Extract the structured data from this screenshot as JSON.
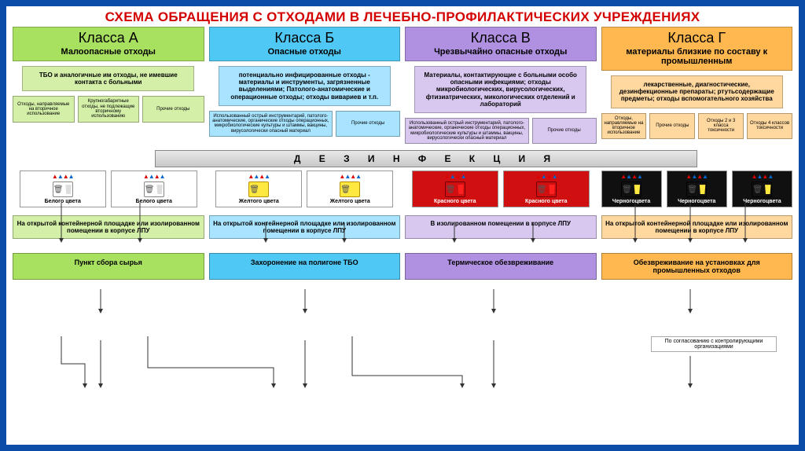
{
  "title": "СХЕМА ОБРАЩЕНИЯ С ОТХОДАМИ В ЛЕЧЕБНО-ПРОФИЛАКТИЧЕСКИХ УЧРЕЖДЕНИЯХ",
  "frame_border_color": "#0a4da8",
  "title_color": "#d40000",
  "disinfection_label": "Д Е З И Н Ф Е К Ц И Я",
  "classes": [
    {
      "id": "A",
      "name": "Класса А",
      "subtitle": "Малоопасные отходы",
      "colors": {
        "light": "#d4f0a8",
        "mid": "#a8e060",
        "dark": "#7fc030"
      },
      "desc": "ТБО и аналогичные им отходы, не имевшие контакта с больными",
      "subboxes": [
        "Отходы, направляемые на вторичное использование",
        "Крупногабаритные отходы, не подлежащие вторичному использованию",
        "Прочие отходы"
      ],
      "bins": [
        {
          "label": "Белого цвета",
          "bag_bg": "#ffffff",
          "bag_border": "#888",
          "bucket": "#dddddd"
        },
        {
          "label": "Белого цвета",
          "bag_bg": "#ffffff",
          "bag_border": "#888",
          "bucket": "#dddddd"
        }
      ],
      "container": "На открытой контейнерной площадке или изолированном помещении в корпусе ЛПУ",
      "final": "Пункт сбора сырья"
    },
    {
      "id": "B",
      "name": "Класса Б",
      "subtitle": "Опасные отходы",
      "colors": {
        "light": "#a8e4ff",
        "mid": "#4fc8f5",
        "dark": "#1a9bd6"
      },
      "desc": "потенциально инфицированные отходы - материалы и инструменты, загрязненные выделениями; Патолого-анатомические и операционные отходы; отходы вивариев и т.п.",
      "subboxes": [
        "Использованный острый инструментарий, патолого-анатомические, органические отходы операционных, микробиологические культуры и штаммы, вакцины, вирусологически опасный материал",
        "Прочие отходы"
      ],
      "bins": [
        {
          "label": "Желтого цвета",
          "bag_bg": "#ffe840",
          "bag_border": "#b89000",
          "bucket": "#ffe840"
        },
        {
          "label": "Желтого цвета",
          "bag_bg": "#ffe840",
          "bag_border": "#b89000",
          "bucket": "#ffe840"
        }
      ],
      "container": "На открытой контейнерной площадке или изолированном помещении в корпусе ЛПУ",
      "final": "Захоронение на полигоне ТБО"
    },
    {
      "id": "V",
      "name": "Класса В",
      "subtitle": "Чрезвычайно опасные отходы",
      "colors": {
        "light": "#d8c8f0",
        "mid": "#b090e0",
        "dark": "#8058c0"
      },
      "desc": "Материалы, контактирующие с больными особо опасными инфекциями; отходы микробиологических, вирусологических, фтизиатрических, микологических отделений и лабораторий",
      "subboxes": [
        "Использованный острый инструментарий, патолого-анатомические, органические отходы операционных, микробиологические культуры и штаммы, вакцины, вирусологически опасный материал",
        "Прочие отходы"
      ],
      "bins": [
        {
          "label": "Красного цвета",
          "bag_bg": "#d01010",
          "bag_border": "#700000",
          "bucket": "#ff2020",
          "label_color": "#ffffff"
        },
        {
          "label": "Красного цвета",
          "bag_bg": "#d01010",
          "bag_border": "#700000",
          "bucket": "#ff2020",
          "label_color": "#ffffff"
        }
      ],
      "container": "В изолированном помещении в корпусе ЛПУ",
      "final": "Термическое обезвреживание"
    },
    {
      "id": "G",
      "name": "Класса Г",
      "subtitle": "материалы близкие по составу к промышленным",
      "colors": {
        "light": "#ffd8a0",
        "mid": "#ffb850",
        "dark": "#e09020"
      },
      "desc": "лекарственные, диагностические, дезинфекционные препараты; ртутьсодержащие предметы; отходы вспомогательного хозяйства",
      "subboxes": [
        "Отходы, направляемые на вторичное использование",
        "Прочие отходы",
        "Отходы 2 и 3 класса токсичности",
        "Отходы 4 классов токсичности"
      ],
      "bins": [
        {
          "label": "Черногоцвета",
          "bag_bg": "#101010",
          "bag_border": "#000",
          "bucket": "#ffe840",
          "label_color": "#ffffff"
        },
        {
          "label": "Черногоцвета",
          "bag_bg": "#101010",
          "bag_border": "#000",
          "bucket": "#ffe840",
          "label_color": "#ffffff"
        },
        {
          "label": "Черногоцвета",
          "bag_bg": "#101010",
          "bag_border": "#000",
          "bucket": "#ffe840",
          "label_color": "#ffffff"
        }
      ],
      "container": "На открытой контейнерной площадке или изолированном помещении в корпусе ЛПУ",
      "note": "По согласованию с контролирующими организациями",
      "final": "Обезвреживание на установках для промышленных отходов"
    }
  ],
  "people_glyphs": "👤👤👤"
}
